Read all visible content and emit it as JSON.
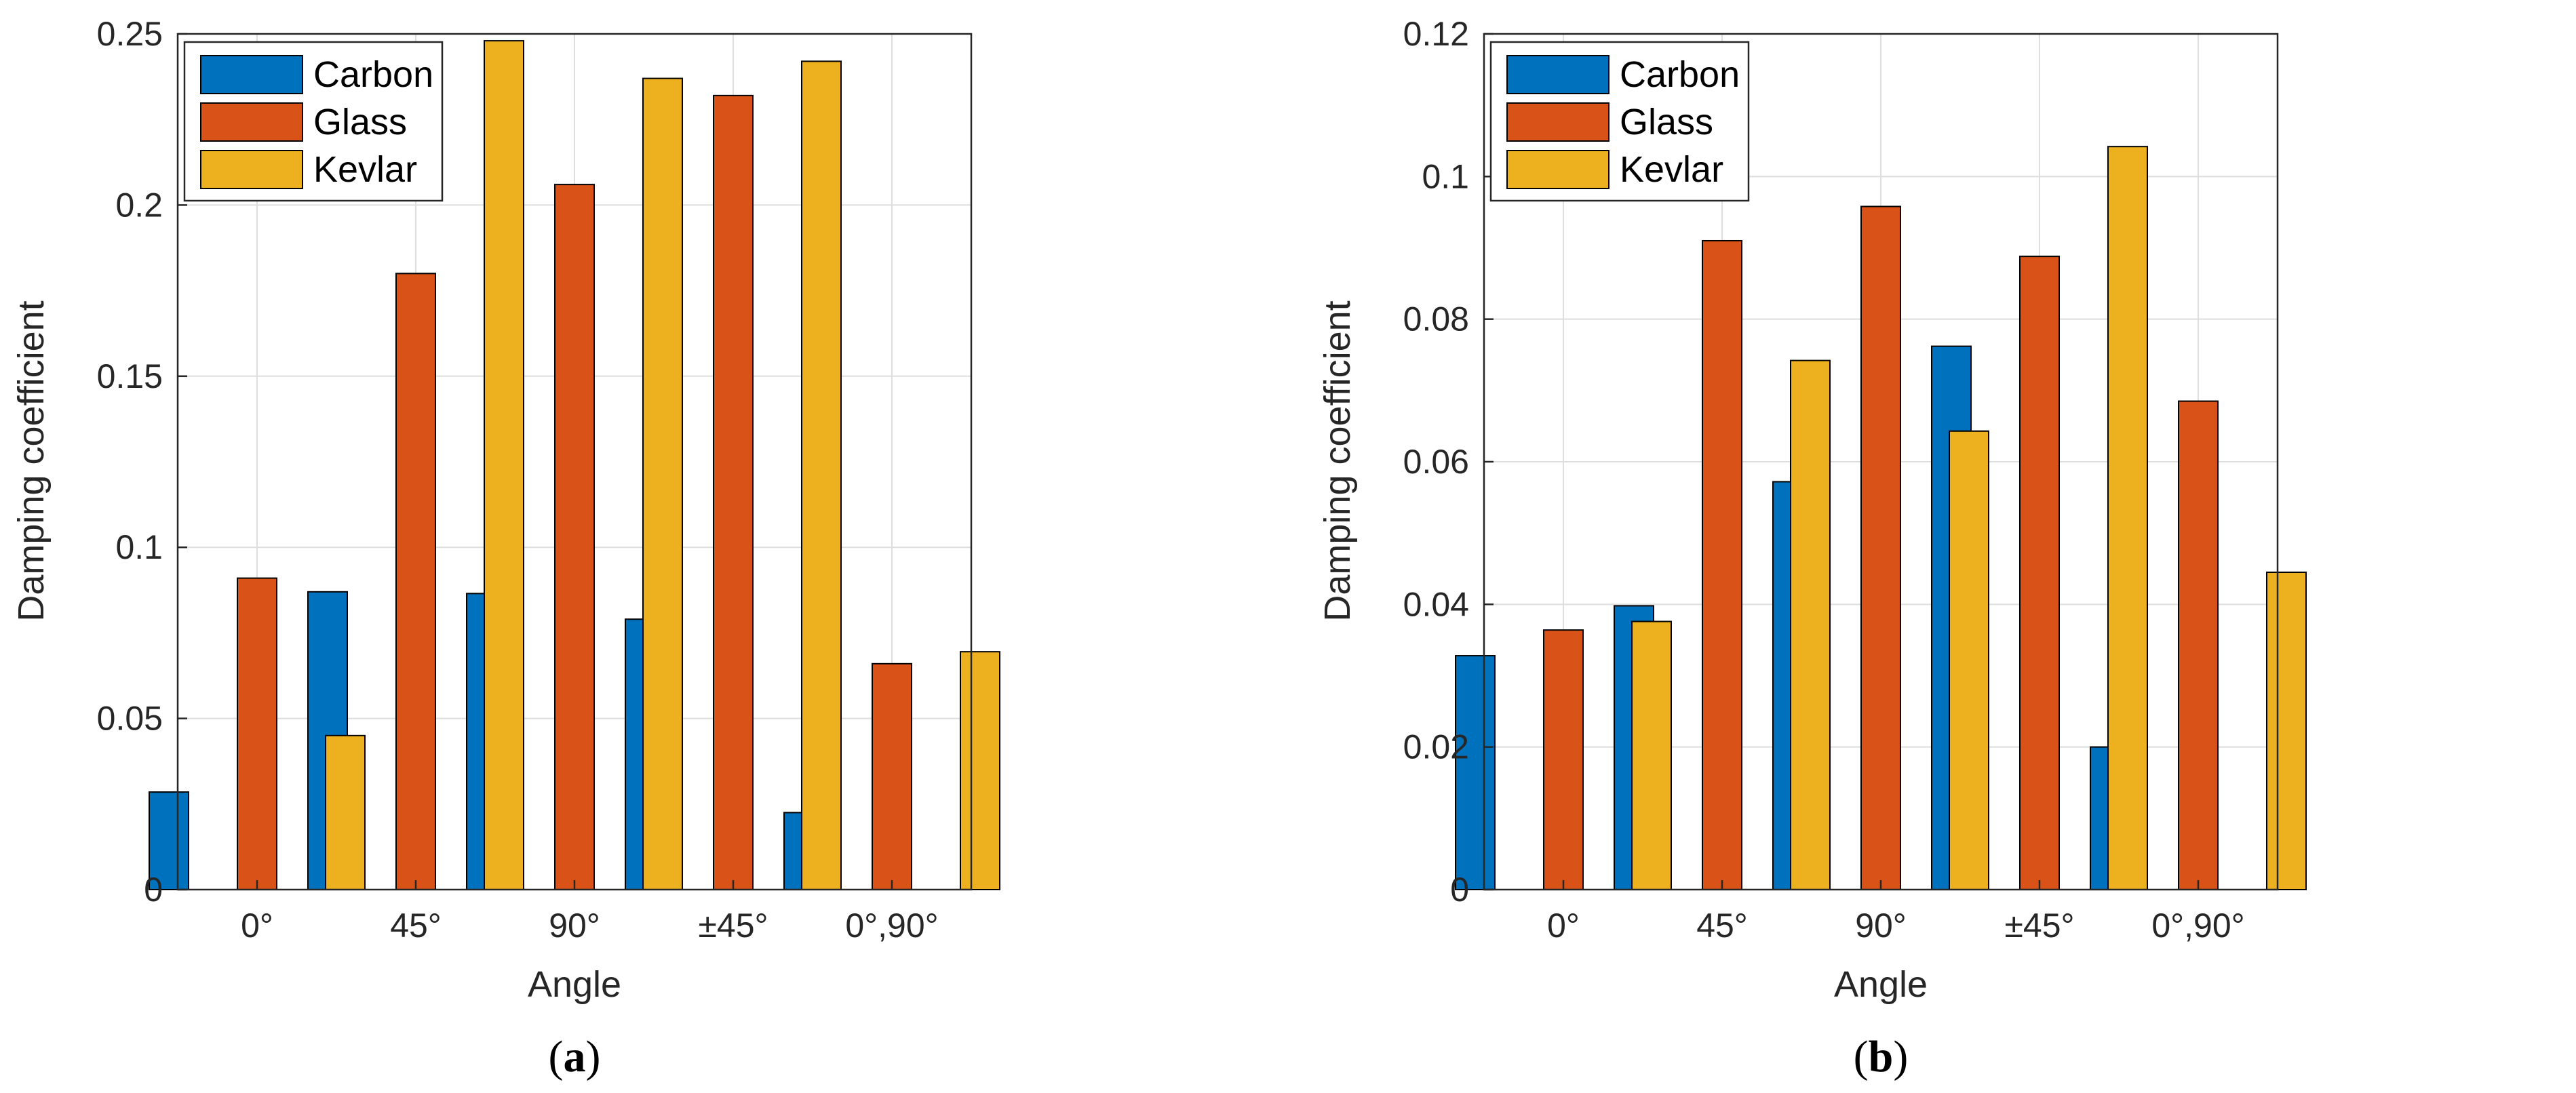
{
  "chart_data": [
    {
      "type": "bar",
      "panel_label": "a",
      "title": "",
      "xlabel": "Angle",
      "ylabel": "Damping coefficient",
      "categories": [
        "0°",
        "45°",
        "90°",
        "±45°",
        "0°,90°"
      ],
      "ylim": [
        0,
        0.25
      ],
      "yticks": [
        "0",
        "0.05",
        "0.1",
        "0.15",
        "0.2",
        "0.25"
      ],
      "grid": true,
      "legend_position": "top-left",
      "series": [
        {
          "name": "Carbon",
          "color": "#0072BD",
          "values": [
            0.0285,
            0.087,
            0.0865,
            0.079,
            0.0225
          ]
        },
        {
          "name": "Glass",
          "color": "#D95319",
          "values": [
            0.091,
            0.18,
            0.206,
            0.232,
            0.066
          ]
        },
        {
          "name": "Kevlar",
          "color": "#EDB120",
          "values": [
            0.045,
            0.248,
            0.237,
            0.242,
            0.0695
          ]
        }
      ]
    },
    {
      "type": "bar",
      "panel_label": "b",
      "title": "",
      "xlabel": "Angle",
      "ylabel": "Damping coefficient",
      "categories": [
        "0°",
        "45°",
        "90°",
        "±45°",
        "0°,90°"
      ],
      "ylim": [
        0,
        0.12
      ],
      "yticks": [
        "0",
        "0.02",
        "0.04",
        "0.06",
        "0.08",
        "0.1",
        "0.12"
      ],
      "grid": true,
      "legend_position": "top-left",
      "series": [
        {
          "name": "Carbon",
          "color": "#0072BD",
          "values": [
            0.0328,
            0.0398,
            0.0572,
            0.0762,
            0.02
          ]
        },
        {
          "name": "Glass",
          "color": "#D95319",
          "values": [
            0.0364,
            0.091,
            0.0958,
            0.0888,
            0.0685
          ]
        },
        {
          "name": "Kevlar",
          "color": "#EDB120",
          "values": [
            0.0376,
            0.0742,
            0.0643,
            0.1042,
            0.0445
          ]
        }
      ]
    }
  ]
}
